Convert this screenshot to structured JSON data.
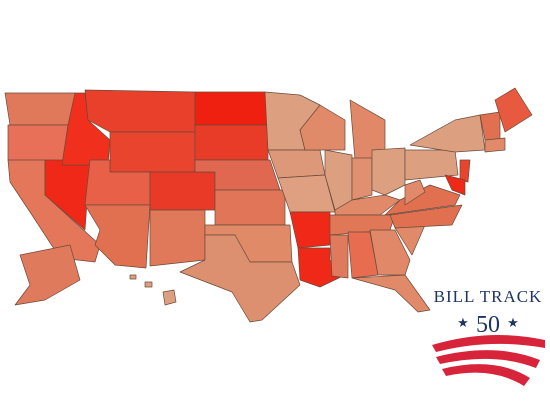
{
  "logo": {
    "title": "BILL TRACK",
    "number": "50"
  }
}
